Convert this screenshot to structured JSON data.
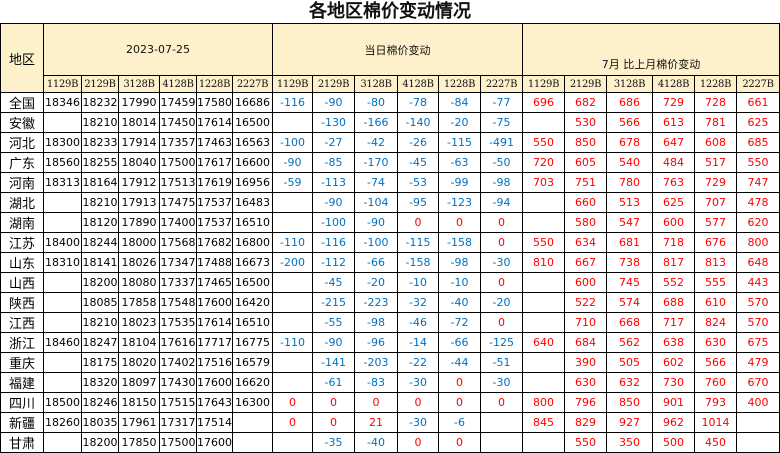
{
  "title": "各地区棉价变动情况",
  "header": {
    "region_label": "地区",
    "date": "2023-07-25",
    "daily_label": "当日棉价变动",
    "monthly_label": "7月  比上月棉价变动",
    "contracts": [
      "1129B",
      "2129B",
      "3128B",
      "4128B",
      "1228B",
      "2227B"
    ]
  },
  "colors": {
    "header_bg": "#fdf1cc",
    "negative": "#0070c0",
    "positive_or_zero": "#ff0000"
  },
  "rows": [
    {
      "region": "全国",
      "price": [
        18346,
        18232,
        17990,
        17459,
        17580,
        16686
      ],
      "daily": [
        -116,
        -90,
        -80,
        -78,
        -84,
        -77
      ],
      "monthly": [
        696,
        682,
        686,
        729,
        728,
        661
      ]
    },
    {
      "region": "安徽",
      "price": [
        null,
        18210,
        18014,
        17450,
        17614,
        16500
      ],
      "daily": [
        null,
        -130,
        -166,
        -140,
        -20,
        -75
      ],
      "monthly": [
        null,
        530,
        566,
        613,
        781,
        625
      ]
    },
    {
      "region": "河北",
      "price": [
        18300,
        18233,
        17914,
        17357,
        17463,
        16563
      ],
      "daily": [
        -100,
        -27,
        -42,
        -26,
        -115,
        -491
      ],
      "monthly": [
        550,
        850,
        678,
        647,
        608,
        685
      ]
    },
    {
      "region": "广东",
      "price": [
        18560,
        18255,
        18040,
        17500,
        17617,
        16600
      ],
      "daily": [
        -90,
        -85,
        -170,
        -45,
        -63,
        -50
      ],
      "monthly": [
        720,
        605,
        540,
        484,
        517,
        550
      ]
    },
    {
      "region": "河南",
      "price": [
        18313,
        18164,
        17912,
        17513,
        17619,
        16956
      ],
      "daily": [
        -59,
        -113,
        -74,
        -53,
        -99,
        -98
      ],
      "monthly": [
        703,
        751,
        780,
        763,
        729,
        747
      ]
    },
    {
      "region": "湖北",
      "price": [
        null,
        18210,
        17913,
        17475,
        17537,
        16483
      ],
      "daily": [
        null,
        -90,
        -104,
        -95,
        -123,
        -94
      ],
      "monthly": [
        null,
        660,
        513,
        625,
        707,
        478
      ]
    },
    {
      "region": "湖南",
      "price": [
        null,
        18120,
        17890,
        17400,
        17537,
        16510
      ],
      "daily": [
        null,
        -100,
        -90,
        0,
        0,
        0
      ],
      "monthly": [
        null,
        580,
        547,
        600,
        577,
        620
      ]
    },
    {
      "region": "江苏",
      "price": [
        18400,
        18244,
        18000,
        17568,
        17682,
        16800
      ],
      "daily": [
        -110,
        -116,
        -100,
        -115,
        -158,
        0
      ],
      "monthly": [
        550,
        634,
        681,
        718,
        676,
        800
      ]
    },
    {
      "region": "山东",
      "price": [
        18310,
        18141,
        18026,
        17347,
        17488,
        16673
      ],
      "daily": [
        -200,
        -112,
        -66,
        -158,
        -98,
        -30
      ],
      "monthly": [
        810,
        667,
        738,
        817,
        813,
        648
      ]
    },
    {
      "region": "山西",
      "price": [
        null,
        18200,
        18080,
        17337,
        17465,
        16500
      ],
      "daily": [
        null,
        -45,
        -20,
        -10,
        -10,
        0
      ],
      "monthly": [
        null,
        600,
        745,
        552,
        555,
        443
      ]
    },
    {
      "region": "陕西",
      "price": [
        null,
        18085,
        17858,
        17548,
        17600,
        16420
      ],
      "daily": [
        null,
        -215,
        -223,
        -32,
        -40,
        -20
      ],
      "monthly": [
        null,
        522,
        574,
        688,
        610,
        570
      ]
    },
    {
      "region": "江西",
      "price": [
        null,
        18210,
        18023,
        17535,
        17614,
        16510
      ],
      "daily": [
        null,
        -55,
        -98,
        -46,
        -72,
        0
      ],
      "monthly": [
        null,
        710,
        668,
        717,
        824,
        570
      ]
    },
    {
      "region": "浙江",
      "price": [
        18460,
        18247,
        18104,
        17616,
        17717,
        16775
      ],
      "daily": [
        -110,
        -90,
        -96,
        -14,
        -66,
        -125
      ],
      "monthly": [
        640,
        684,
        562,
        638,
        630,
        675
      ]
    },
    {
      "region": "重庆",
      "price": [
        null,
        18175,
        18020,
        17402,
        17516,
        16579
      ],
      "daily": [
        null,
        -141,
        -203,
        -22,
        -44,
        -51
      ],
      "monthly": [
        null,
        390,
        505,
        602,
        566,
        479
      ]
    },
    {
      "region": "福建",
      "price": [
        null,
        18320,
        18097,
        17430,
        17600,
        16620
      ],
      "daily": [
        null,
        -61,
        -83,
        -30,
        0,
        -30
      ],
      "monthly": [
        null,
        630,
        632,
        730,
        760,
        670
      ]
    },
    {
      "region": "四川",
      "price": [
        18500,
        18246,
        18150,
        17515,
        17643,
        16300
      ],
      "daily": [
        0,
        0,
        0,
        0,
        0,
        0
      ],
      "monthly": [
        800,
        796,
        850,
        901,
        793,
        400
      ]
    },
    {
      "region": "新疆",
      "price": [
        18260,
        18035,
        17961,
        17317,
        17514,
        null
      ],
      "daily": [
        0,
        0,
        21,
        -30,
        -6,
        null
      ],
      "monthly": [
        845,
        829,
        927,
        962,
        1014,
        null
      ]
    },
    {
      "region": "甘肃",
      "price": [
        null,
        18200,
        17850,
        17500,
        17600,
        null
      ],
      "daily": [
        null,
        -35,
        -40,
        0,
        0,
        null
      ],
      "monthly": [
        null,
        550,
        350,
        500,
        450,
        null
      ]
    }
  ]
}
